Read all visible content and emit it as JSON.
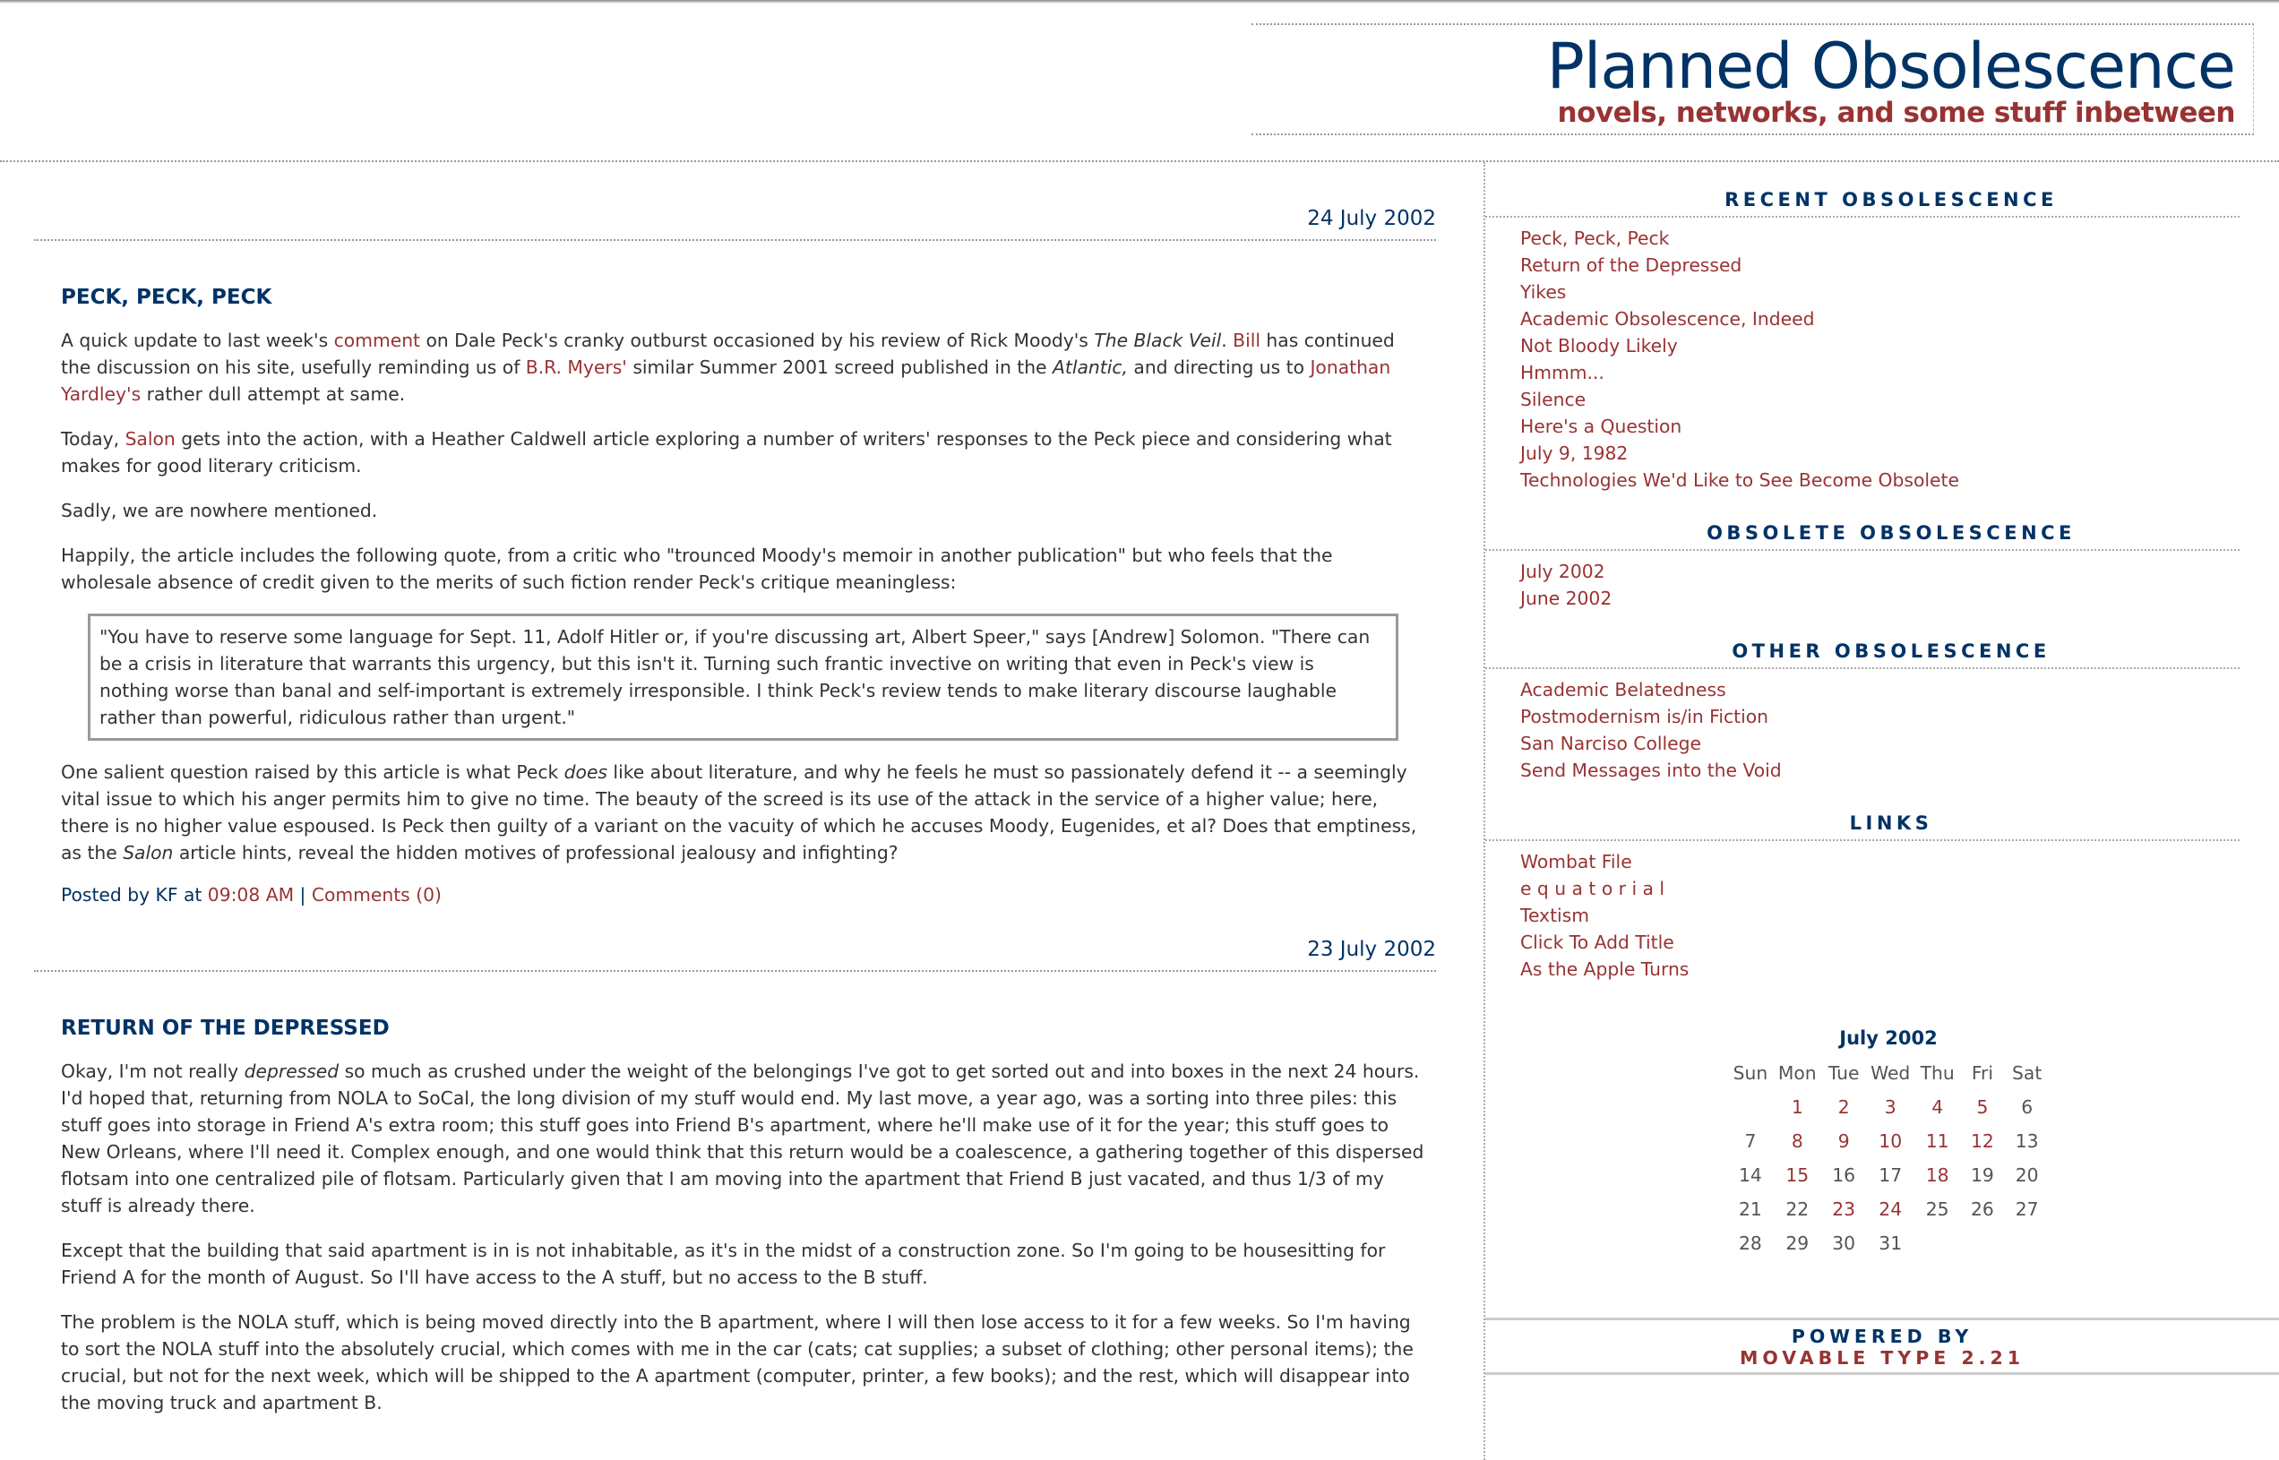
{
  "colors": {
    "navy": "#003366",
    "link": "#993333",
    "text": "#333333"
  },
  "header": {
    "title": "Planned Obsolescence",
    "subtitle": "novels, networks, and some stuff inbetween"
  },
  "posts": [
    {
      "date": "24 July 2002",
      "title": "PECK, PECK, PECK",
      "paragraphs": [
        [
          {
            "t": "A quick update to last week's "
          },
          {
            "t": "comment",
            "link": true
          },
          {
            "t": " on Dale Peck's cranky outburst occasioned by his review of Rick Moody's "
          },
          {
            "t": "The Black Veil",
            "em": true
          },
          {
            "t": ". "
          },
          {
            "t": "Bill",
            "link": true
          },
          {
            "t": " has continued the discussion on his site, usefully reminding us of "
          },
          {
            "t": "B.R. Myers'",
            "link": true
          },
          {
            "t": " similar Summer 2001 screed published in the "
          },
          {
            "t": "Atlantic,",
            "em": true
          },
          {
            "t": " and directing us to "
          },
          {
            "t": "Jonathan Yardley's",
            "link": true
          },
          {
            "t": " rather dull attempt at same."
          }
        ],
        [
          {
            "t": "Today, "
          },
          {
            "t": "Salon",
            "link": true
          },
          {
            "t": " gets into the action, with a Heather Caldwell article exploring a number of writers' responses to the Peck piece and considering what makes for good literary criticism."
          }
        ],
        [
          {
            "t": "Sadly, we are nowhere mentioned."
          }
        ],
        [
          {
            "t": "Happily, the article includes the following quote, from a critic who \"trounced Moody's memoir in another publication\" but who feels that the wholesale absence of credit given to the merits of such fiction render Peck's critique meaningless:"
          }
        ]
      ],
      "quote": "\"You have to reserve some language for Sept. 11, Adolf Hitler or, if you're discussing art, Albert Speer,\" says [Andrew] Solomon. \"There can be a crisis in literature that warrants this urgency, but this isn't it. Turning such frantic invective on writing that even in Peck's view is nothing worse than banal and self-important is extremely irresponsible. I think Peck's review tends to make literary discourse laughable rather than powerful, ridiculous rather than urgent.\"",
      "after": [
        [
          {
            "t": "One salient question raised by this article is what Peck "
          },
          {
            "t": "does",
            "em": true
          },
          {
            "t": " like about literature, and why he feels he must so passionately defend it -- a seemingly vital issue to which his anger permits him to give no time. The beauty of the screed is its use of the attack in the service of a higher value; here, there is no higher value espoused. Is Peck then guilty of a variant on the vacuity of which he accuses Moody, Eugenides, et al? Does that emptiness, as the "
          },
          {
            "t": "Salon",
            "em": true
          },
          {
            "t": " article hints, reveal the hidden motives of professional jealousy and infighting?"
          }
        ]
      ],
      "posted_prefix": "Posted by KF at ",
      "time": "09:08 AM",
      "sep": " | ",
      "comments": "Comments (0)"
    },
    {
      "date": "23 July 2002",
      "title": "RETURN OF THE DEPRESSED",
      "paragraphs": [
        [
          {
            "t": "Okay, I'm not really "
          },
          {
            "t": "depressed",
            "em": true
          },
          {
            "t": " so much as crushed under the weight of the belongings I've got to get sorted out and into boxes in the next 24 hours. I'd hoped that, returning from NOLA to SoCal, the long division of my stuff would end. My last move, a year ago, was a sorting into three piles: this stuff goes into storage in Friend A's extra room; this stuff goes into Friend B's apartment, where he'll make use of it for the year; this stuff goes to New Orleans, where I'll need it. Complex enough, and one would think that this return would be a coalescence, a gathering together of this dispersed flotsam into one centralized pile of flotsam. Particularly given that I am moving into the apartment that Friend B just vacated, and thus 1/3 of my stuff is already there."
          }
        ],
        [
          {
            "t": "Except that the building that said apartment is in is not inhabitable, as it's in the midst of a construction zone. So I'm going to be housesitting for Friend A for the month of August. So I'll have access to the A stuff, but no access to the B stuff."
          }
        ],
        [
          {
            "t": "The problem is the NOLA stuff, which is being moved directly into the B apartment, where I will then lose access to it for a few weeks. So I'm having to sort the NOLA stuff into the absolutely crucial, which comes with me in the car (cats; cat supplies; a subset of clothing; other personal items); the crucial, but not for the next week, which will be shipped to the A apartment (computer, printer, a few books); and the rest, which will disappear into the moving truck and apartment B."
          }
        ]
      ]
    }
  ],
  "sidebar": {
    "sections": [
      {
        "heading": "RECENT OBSOLESCENCE",
        "items": [
          "Peck, Peck, Peck",
          "Return of the Depressed",
          "Yikes",
          "Academic Obsolescence, Indeed",
          "Not Bloody Likely",
          "Hmmm...",
          "Silence",
          "Here's a Question",
          "July 9, 1982",
          "Technologies We'd Like to See Become Obsolete"
        ]
      },
      {
        "heading": "OBSOLETE OBSOLESCENCE",
        "items": [
          "July 2002",
          "June 2002"
        ]
      },
      {
        "heading": "OTHER OBSOLESCENCE",
        "items": [
          "Academic Belatedness",
          "Postmodernism is/in Fiction",
          "San Narciso College",
          "Send Messages into the Void"
        ]
      },
      {
        "heading": "LINKS",
        "items": [
          "Wombat File",
          "e q u a t o r i a l",
          "Textism",
          "Click To Add Title",
          "As the Apple Turns"
        ]
      }
    ],
    "calendar": {
      "title": "July 2002",
      "days": [
        "Sun",
        "Mon",
        "Tue",
        "Wed",
        "Thu",
        "Fri",
        "Sat"
      ],
      "weeks": [
        [
          null,
          {
            "d": 1,
            "link": true
          },
          {
            "d": 2,
            "link": true
          },
          {
            "d": 3,
            "link": true
          },
          {
            "d": 4,
            "link": true
          },
          {
            "d": 5,
            "link": true
          },
          {
            "d": 6
          }
        ],
        [
          {
            "d": 7
          },
          {
            "d": 8,
            "link": true
          },
          {
            "d": 9,
            "link": true
          },
          {
            "d": 10,
            "link": true
          },
          {
            "d": 11,
            "link": true
          },
          {
            "d": 12,
            "link": true
          },
          {
            "d": 13
          }
        ],
        [
          {
            "d": 14
          },
          {
            "d": 15,
            "link": true
          },
          {
            "d": 16
          },
          {
            "d": 17
          },
          {
            "d": 18,
            "link": true
          },
          {
            "d": 19
          },
          {
            "d": 20
          }
        ],
        [
          {
            "d": 21
          },
          {
            "d": 22
          },
          {
            "d": 23,
            "link": true
          },
          {
            "d": 24,
            "link": true
          },
          {
            "d": 25
          },
          {
            "d": 26
          },
          {
            "d": 27
          }
        ],
        [
          {
            "d": 28
          },
          {
            "d": 29
          },
          {
            "d": 30
          },
          {
            "d": 31
          },
          null,
          null,
          null
        ]
      ]
    },
    "footer": {
      "line1": "POWERED BY",
      "line2": "MOVABLE TYPE 2.21"
    }
  }
}
